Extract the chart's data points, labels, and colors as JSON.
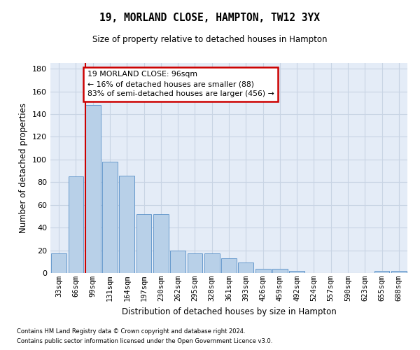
{
  "title1": "19, MORLAND CLOSE, HAMPTON, TW12 3YX",
  "title2": "Size of property relative to detached houses in Hampton",
  "xlabel": "Distribution of detached houses by size in Hampton",
  "ylabel": "Number of detached properties",
  "categories": [
    "33sqm",
    "66sqm",
    "99sqm",
    "131sqm",
    "164sqm",
    "197sqm",
    "230sqm",
    "262sqm",
    "295sqm",
    "328sqm",
    "361sqm",
    "393sqm",
    "426sqm",
    "459sqm",
    "492sqm",
    "524sqm",
    "557sqm",
    "590sqm",
    "623sqm",
    "655sqm",
    "688sqm"
  ],
  "values": [
    17,
    85,
    148,
    98,
    86,
    52,
    52,
    20,
    17,
    17,
    13,
    9,
    4,
    4,
    2,
    0,
    0,
    0,
    0,
    2,
    2
  ],
  "bar_color": "#b8d0e8",
  "bar_edge_color": "#6699cc",
  "grid_color": "#c8d4e4",
  "background_color": "#e4ecf7",
  "property_line_x": 2,
  "annotation_text": "19 MORLAND CLOSE: 96sqm\n← 16% of detached houses are smaller (88)\n83% of semi-detached houses are larger (456) →",
  "annotation_box_color": "#ffffff",
  "annotation_border_color": "#cc0000",
  "property_line_color": "#cc0000",
  "ylim": [
    0,
    185
  ],
  "yticks": [
    0,
    20,
    40,
    60,
    80,
    100,
    120,
    140,
    160,
    180
  ],
  "footnote1": "Contains HM Land Registry data © Crown copyright and database right 2024.",
  "footnote2": "Contains public sector information licensed under the Open Government Licence v3.0."
}
